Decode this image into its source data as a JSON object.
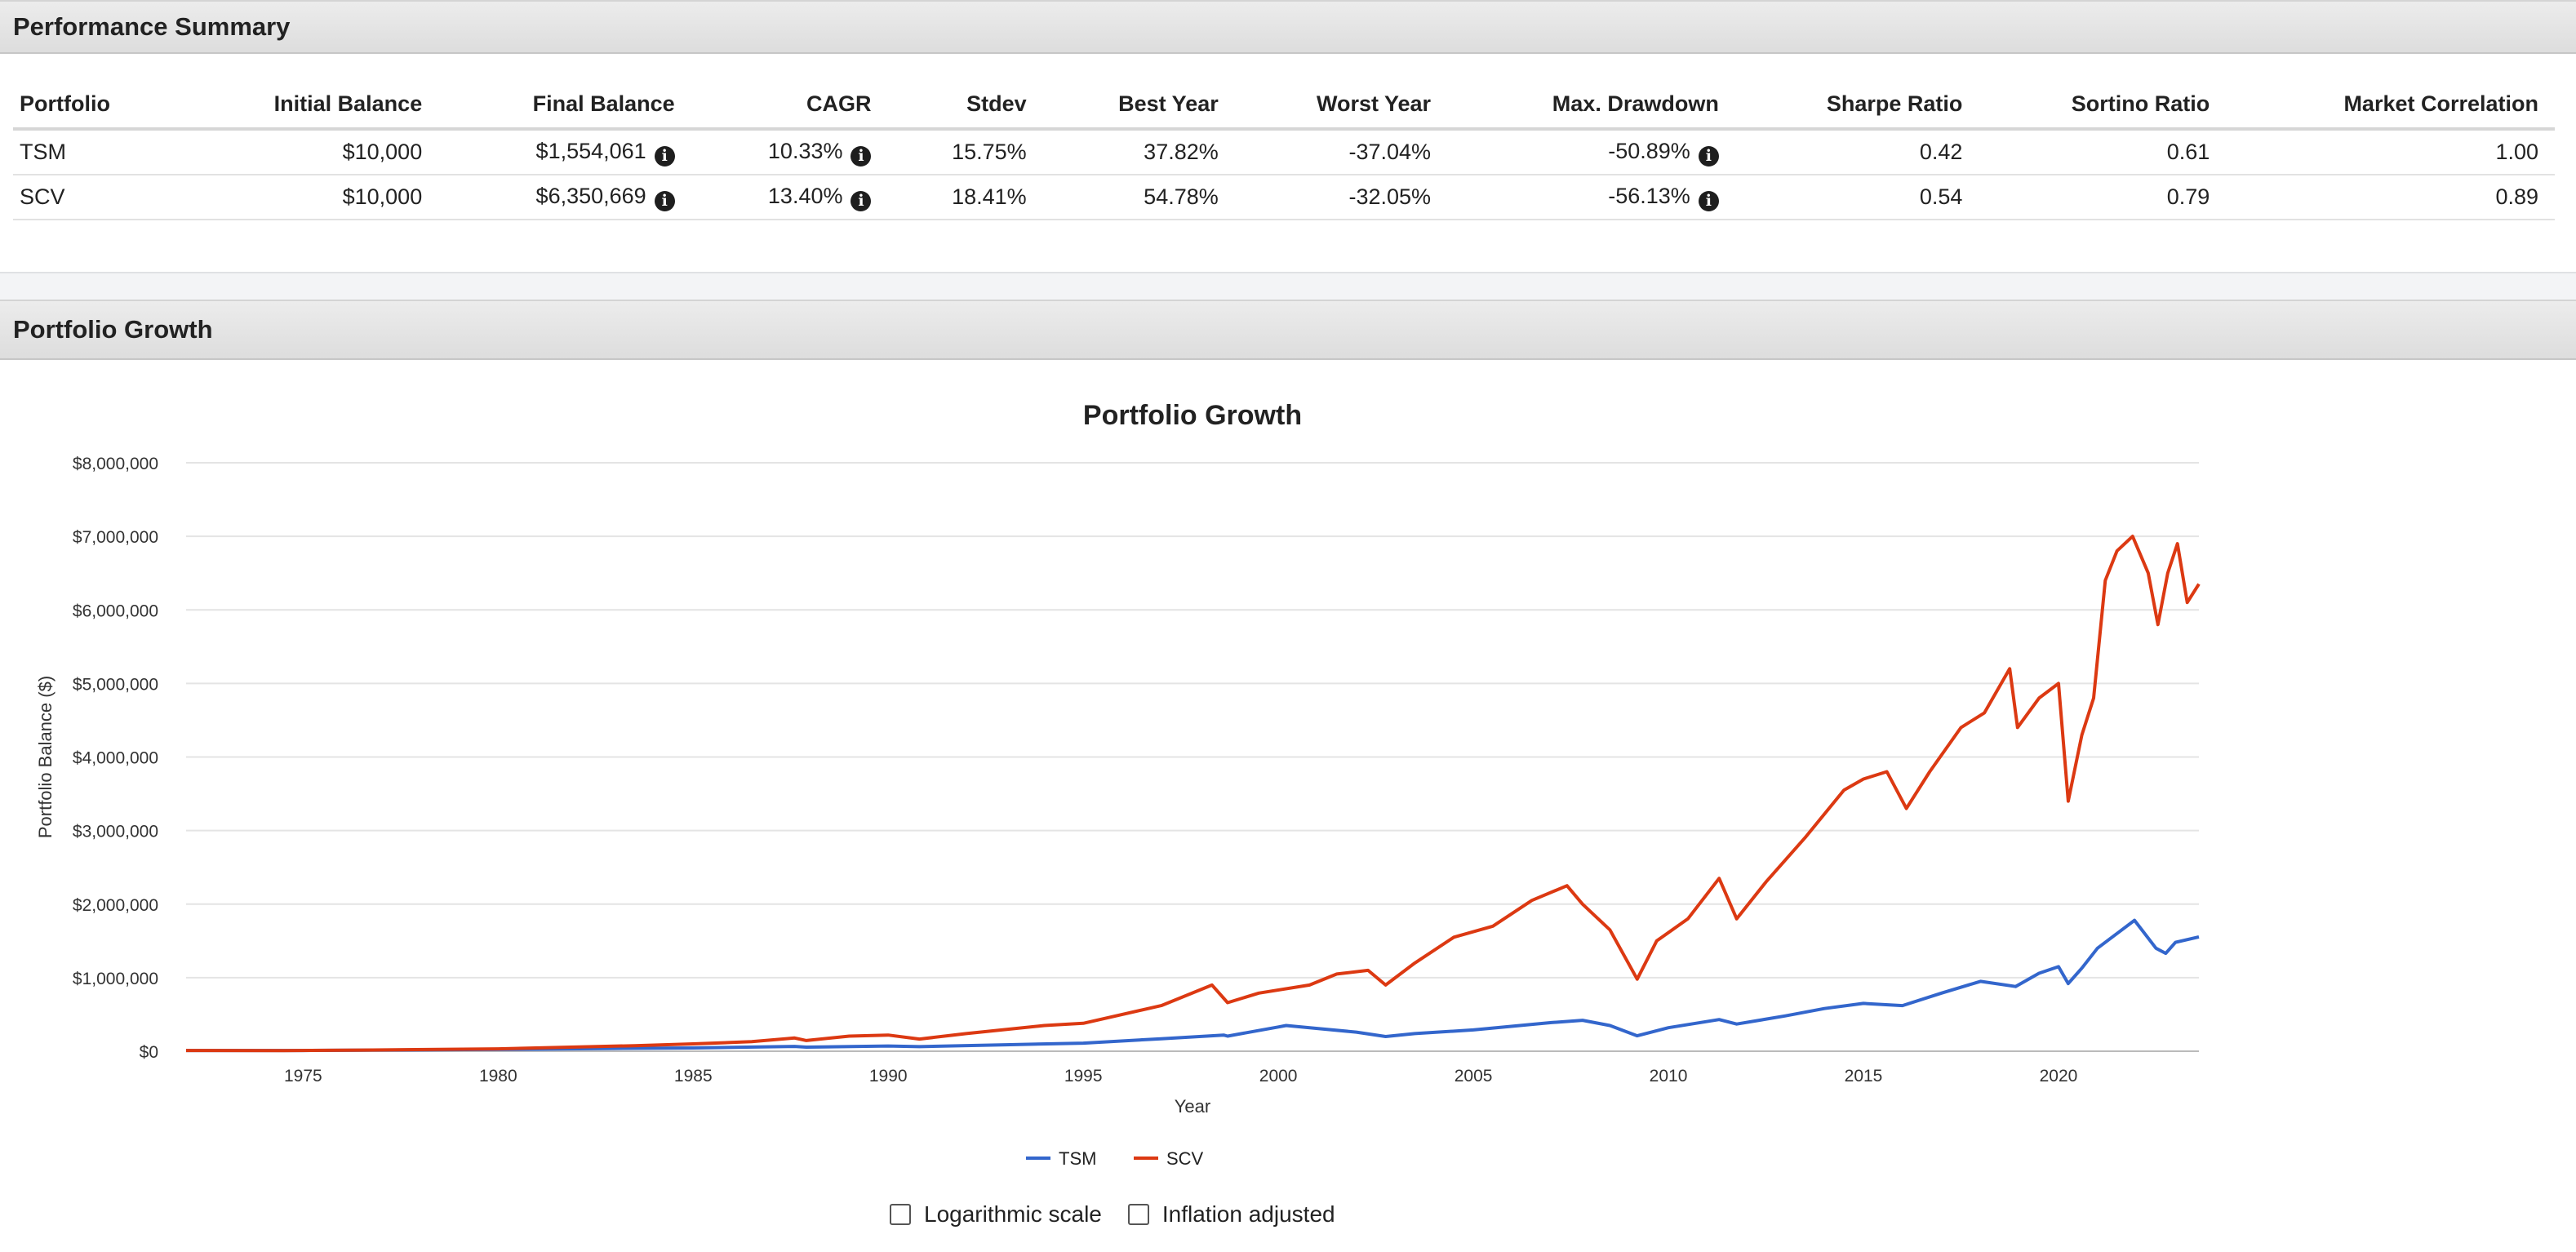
{
  "summary": {
    "title": "Performance Summary",
    "columns": [
      "Portfolio",
      "Initial Balance",
      "Final Balance",
      "CAGR",
      "Stdev",
      "Best Year",
      "Worst Year",
      "Max. Drawdown",
      "Sharpe Ratio",
      "Sortino Ratio",
      "Market Correlation"
    ],
    "rows": [
      {
        "portfolio": "TSM",
        "initial": "$10,000",
        "final": "$1,554,061",
        "cagr": "10.33%",
        "stdev": "15.75%",
        "best": "37.82%",
        "worst": "-37.04%",
        "maxdd": "-50.89%",
        "sharpe": "0.42",
        "sortino": "0.61",
        "corr": "1.00"
      },
      {
        "portfolio": "SCV",
        "initial": "$10,000",
        "final": "$6,350,669",
        "cagr": "13.40%",
        "stdev": "18.41%",
        "best": "54.78%",
        "worst": "-32.05%",
        "maxdd": "-56.13%",
        "sharpe": "0.54",
        "sortino": "0.79",
        "corr": "0.89"
      }
    ],
    "info_icon": "info-circle-icon"
  },
  "growth": {
    "header": "Portfolio Growth",
    "controls": {
      "log_scale_label": "Logarithmic scale",
      "inflation_label": "Inflation adjusted",
      "log_checked": false,
      "inflation_checked": false
    }
  },
  "chart_data": {
    "type": "line",
    "title": "Portfolio Growth",
    "xlabel": "Year",
    "ylabel": "Portfolio Balance ($)",
    "xlim": [
      1972,
      2023.6
    ],
    "ylim": [
      0,
      8000000
    ],
    "x_ticks": [
      "1975",
      "1980",
      "1985",
      "1990",
      "1995",
      "2000",
      "2005",
      "2010",
      "2015",
      "2020"
    ],
    "y_ticks": [
      "$0",
      "$1,000,000",
      "$2,000,000",
      "$3,000,000",
      "$4,000,000",
      "$5,000,000",
      "$6,000,000",
      "$7,000,000",
      "$8,000,000"
    ],
    "grid": true,
    "legend_position": "bottom",
    "series": [
      {
        "name": "TSM",
        "color": "#3366cc",
        "points": [
          [
            1972.0,
            10000
          ],
          [
            1975.0,
            9500
          ],
          [
            1980.0,
            24000
          ],
          [
            1983.0,
            38000
          ],
          [
            1985.0,
            44000
          ],
          [
            1987.6,
            66000
          ],
          [
            1987.9,
            55000
          ],
          [
            1990.0,
            71000
          ],
          [
            1990.8,
            62000
          ],
          [
            1993.0,
            88000
          ],
          [
            1995.0,
            110000
          ],
          [
            1997.0,
            170000
          ],
          [
            1998.6,
            220000
          ],
          [
            1998.7,
            205000
          ],
          [
            2000.0,
            330000
          ],
          [
            2000.2,
            350000
          ],
          [
            2001.0,
            310000
          ],
          [
            2002.0,
            260000
          ],
          [
            2002.75,
            200000
          ],
          [
            2003.5,
            240000
          ],
          [
            2005.0,
            290000
          ],
          [
            2007.0,
            390000
          ],
          [
            2007.8,
            420000
          ],
          [
            2008.5,
            350000
          ],
          [
            2009.2,
            210000
          ],
          [
            2010.0,
            320000
          ],
          [
            2011.3,
            430000
          ],
          [
            2011.75,
            370000
          ],
          [
            2013.0,
            480000
          ],
          [
            2014.0,
            580000
          ],
          [
            2015.0,
            650000
          ],
          [
            2016.0,
            620000
          ],
          [
            2017.0,
            790000
          ],
          [
            2018.0,
            950000
          ],
          [
            2018.9,
            880000
          ],
          [
            2019.5,
            1060000
          ],
          [
            2020.0,
            1150000
          ],
          [
            2020.25,
            920000
          ],
          [
            2020.6,
            1130000
          ],
          [
            2021.0,
            1400000
          ],
          [
            2021.5,
            1600000
          ],
          [
            2021.95,
            1780000
          ],
          [
            2022.5,
            1400000
          ],
          [
            2022.75,
            1330000
          ],
          [
            2023.0,
            1480000
          ],
          [
            2023.6,
            1554061
          ]
        ]
      },
      {
        "name": "SCV",
        "color": "#dc3912",
        "points": [
          [
            1972.0,
            10000
          ],
          [
            1974.5,
            9000
          ],
          [
            1976.5,
            16000
          ],
          [
            1980.0,
            32000
          ],
          [
            1983.5,
            75000
          ],
          [
            1985.0,
            100000
          ],
          [
            1986.5,
            130000
          ],
          [
            1987.6,
            180000
          ],
          [
            1987.9,
            145000
          ],
          [
            1989.0,
            205000
          ],
          [
            1990.0,
            220000
          ],
          [
            1990.8,
            165000
          ],
          [
            1992.0,
            240000
          ],
          [
            1994.0,
            350000
          ],
          [
            1995.0,
            380000
          ],
          [
            1997.0,
            620000
          ],
          [
            1998.3,
            900000
          ],
          [
            1998.7,
            660000
          ],
          [
            1999.5,
            790000
          ],
          [
            2000.8,
            900000
          ],
          [
            2001.5,
            1050000
          ],
          [
            2002.3,
            1100000
          ],
          [
            2002.75,
            900000
          ],
          [
            2003.5,
            1200000
          ],
          [
            2004.5,
            1550000
          ],
          [
            2005.5,
            1700000
          ],
          [
            2006.5,
            2050000
          ],
          [
            2007.4,
            2250000
          ],
          [
            2007.8,
            2000000
          ],
          [
            2008.5,
            1650000
          ],
          [
            2009.2,
            980000
          ],
          [
            2009.7,
            1500000
          ],
          [
            2010.5,
            1800000
          ],
          [
            2011.3,
            2350000
          ],
          [
            2011.75,
            1800000
          ],
          [
            2012.5,
            2300000
          ],
          [
            2013.5,
            2900000
          ],
          [
            2014.5,
            3550000
          ],
          [
            2015.0,
            3700000
          ],
          [
            2015.6,
            3800000
          ],
          [
            2016.1,
            3300000
          ],
          [
            2016.7,
            3800000
          ],
          [
            2017.5,
            4400000
          ],
          [
            2018.1,
            4600000
          ],
          [
            2018.75,
            5200000
          ],
          [
            2018.95,
            4400000
          ],
          [
            2019.5,
            4800000
          ],
          [
            2020.0,
            5000000
          ],
          [
            2020.25,
            3400000
          ],
          [
            2020.6,
            4300000
          ],
          [
            2020.9,
            4800000
          ],
          [
            2021.2,
            6400000
          ],
          [
            2021.5,
            6800000
          ],
          [
            2021.9,
            7000000
          ],
          [
            2022.3,
            6500000
          ],
          [
            2022.55,
            5800000
          ],
          [
            2022.8,
            6500000
          ],
          [
            2023.05,
            6900000
          ],
          [
            2023.3,
            6100000
          ],
          [
            2023.6,
            6350669
          ]
        ]
      }
    ]
  }
}
